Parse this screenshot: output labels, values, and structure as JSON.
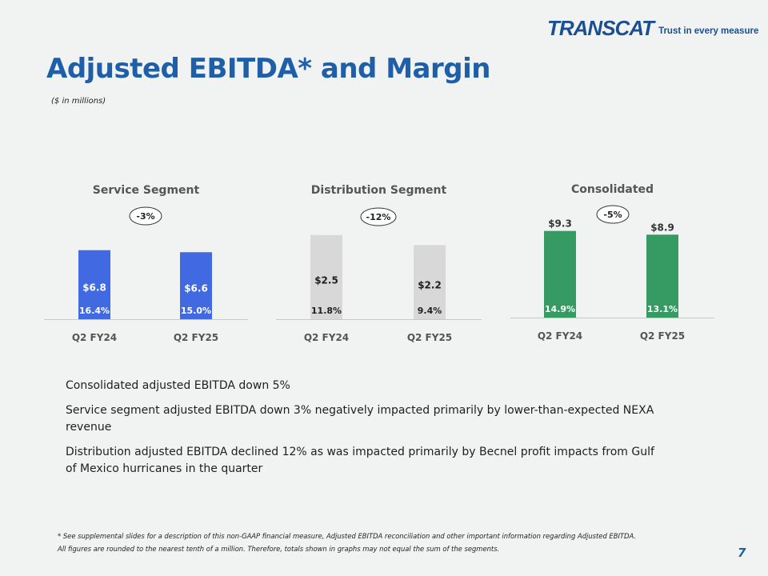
{
  "brand": {
    "logo_text": "TRANSCAT",
    "tagline": "Trust in every measure"
  },
  "header": {
    "title": "Adjusted EBITDA* and Margin",
    "subtitle": "($ in millions)"
  },
  "colors": {
    "title": "#1f5fa7",
    "service": "#4169e1",
    "distribution": "#d8d8d8",
    "consolidated": "#359b63"
  },
  "chart_data": [
    {
      "type": "bar",
      "title": "Service Segment",
      "categories": [
        "Q2 FY24",
        "Q2 FY25"
      ],
      "values": [
        6.8,
        6.6
      ],
      "value_labels": [
        "$6.8",
        "$6.6"
      ],
      "margin_labels": [
        "16.4%",
        "15.0%"
      ],
      "change_label": "-3%",
      "value_label_position": "inside",
      "ylim": [
        0,
        9.3
      ],
      "bar_color": "#4169e1",
      "text_color": "#ffffff",
      "grid": false
    },
    {
      "type": "bar",
      "title": "Distribution Segment",
      "categories": [
        "Q2 FY24",
        "Q2 FY25"
      ],
      "values": [
        2.5,
        2.2
      ],
      "value_labels": [
        "$2.5",
        "$2.2"
      ],
      "margin_labels": [
        "11.8%",
        "9.4%"
      ],
      "change_label": "-12%",
      "value_label_position": "inside",
      "ylim": [
        0,
        2.85
      ],
      "bar_color": "#d8d8d8",
      "text_color": "#1e1e1e",
      "grid": false
    },
    {
      "type": "bar",
      "title": "Consolidated",
      "categories": [
        "Q2 FY24",
        "Q2 FY25"
      ],
      "values": [
        9.3,
        8.9
      ],
      "value_labels": [
        "$9.3",
        "$8.9"
      ],
      "margin_labels": [
        "14.9%",
        "13.1%"
      ],
      "change_label": "-5%",
      "value_label_position": "above",
      "ylim": [
        0,
        10.9
      ],
      "bar_color": "#359b63",
      "text_color": "#ffffff",
      "grid": false
    }
  ],
  "bullets": [
    "Consolidated adjusted EBITDA down 5%",
    "Service segment adjusted EBITDA down 3% negatively impacted primarily by lower-than-expected NEXA revenue",
    "Distribution adjusted EBITDA declined 12% as was impacted primarily by Becnel profit impacts from Gulf of Mexico hurricanes in the quarter"
  ],
  "footnotes": [
    "* See supplemental slides for a description of this non-GAAP financial measure, Adjusted EBITDA reconciliation and other important information regarding Adjusted EBITDA.",
    "All figures are rounded to the nearest tenth of a million. Therefore, totals shown in graphs may not equal the sum of the segments."
  ],
  "page_number": "7"
}
